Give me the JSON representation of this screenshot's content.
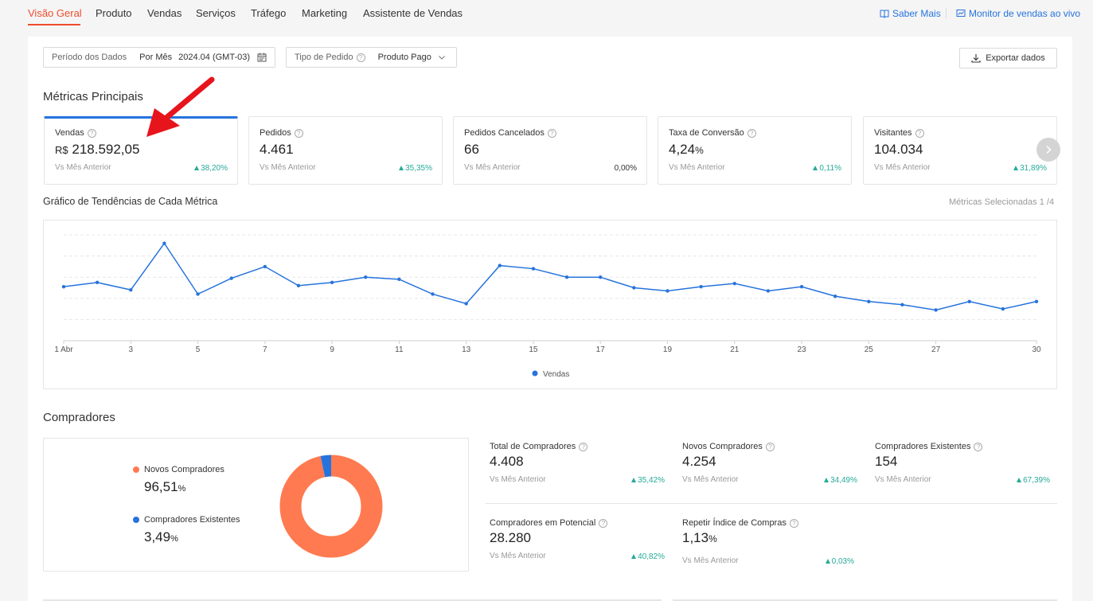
{
  "nav": {
    "tabs": [
      "Visão Geral",
      "Produto",
      "Vendas",
      "Serviços",
      "Tráfego",
      "Marketing",
      "Assistente de Vendas"
    ],
    "links": [
      "Saber Mais",
      "Monitor de vendas ao vivo"
    ]
  },
  "filters": {
    "period_label": "Período dos Dados",
    "period_mode": "Por Mês",
    "period_value": "2024.04 (GMT-03)",
    "order_label": "Tipo de Pedido",
    "order_value": "Produto Pago",
    "export": "Exportar dados"
  },
  "main_metrics": {
    "title": "Métricas Principais",
    "compare_label": "Vs Mês Anterior",
    "currency": "R$",
    "cards": [
      {
        "title": "Vendas",
        "value": "218.592,05",
        "change": "38,20%",
        "trend": "up"
      },
      {
        "title": "Pedidos",
        "value": "4.461",
        "change": "35,35%",
        "trend": "up"
      },
      {
        "title": "Pedidos Cancelados",
        "value": "66",
        "change": "0,00%",
        "trend": "none"
      },
      {
        "title": "Taxa de Conversão",
        "value": "4,24",
        "unit": "%",
        "change": "0,11%",
        "trend": "up"
      },
      {
        "title": "Visitantes",
        "value": "104.034",
        "change": "31,89%",
        "trend": "up"
      }
    ]
  },
  "trend": {
    "title": "Gráfico de Tendências de Cada Métrica",
    "selected": "Métricas Selecionadas 1 /4"
  },
  "chart_data": {
    "type": "line",
    "x": [
      1,
      2,
      3,
      4,
      5,
      6,
      7,
      8,
      9,
      10,
      11,
      12,
      13,
      14,
      15,
      16,
      17,
      18,
      19,
      20,
      21,
      22,
      23,
      24,
      25,
      26,
      27,
      28,
      29,
      30
    ],
    "tick_labels": [
      "1 Abr",
      "3",
      "5",
      "7",
      "9",
      "11",
      "13",
      "15",
      "17",
      "19",
      "21",
      "23",
      "25",
      "27",
      "30"
    ],
    "tick_positions": [
      1,
      3,
      5,
      7,
      9,
      11,
      13,
      15,
      17,
      19,
      21,
      23,
      25,
      27,
      30
    ],
    "series": [
      {
        "name": "Vendas",
        "color": "#2673dd",
        "values": [
          0.51,
          0.55,
          0.48,
          0.92,
          0.44,
          0.59,
          0.7,
          0.52,
          0.55,
          0.6,
          0.58,
          0.44,
          0.35,
          0.71,
          0.68,
          0.6,
          0.6,
          0.5,
          0.47,
          0.51,
          0.54,
          0.47,
          0.51,
          0.42,
          0.37,
          0.34,
          0.29,
          0.37,
          0.3,
          0.37
        ]
      }
    ],
    "grid": true,
    "legend": "bottom-center"
  },
  "buyers": {
    "title": "Compradores",
    "new_label": "Novos Compradores",
    "new_pct": "96,51",
    "existing_label": "Compradores Existentes",
    "existing_pct": "3,49",
    "pct_unit": "%",
    "new_color": "#ff7a50",
    "existing_color": "#2673dd",
    "donut_values": [
      96.51,
      3.49
    ],
    "compare_label": "Vs Mês Anterior",
    "metrics": [
      {
        "title": "Total de Compradores",
        "value": "4.408",
        "change": "35,42%"
      },
      {
        "title": "Novos Compradores",
        "value": "4.254",
        "change": "34,49%"
      },
      {
        "title": "Compradores Existentes",
        "value": "154",
        "change": "67,39%"
      },
      {
        "title": "Compradores em Potencial",
        "value": "28.280",
        "change": "40,82%"
      },
      {
        "title": "Repetir Índice de Compras",
        "value": "1,13",
        "unit": "%",
        "change": "0,03%"
      }
    ]
  },
  "icons": {
    "calendar": "calendar-icon",
    "chevron": "chevron-down-icon",
    "download": "download-icon",
    "help": "help-icon",
    "arrow": "red-arrow-annotation"
  }
}
